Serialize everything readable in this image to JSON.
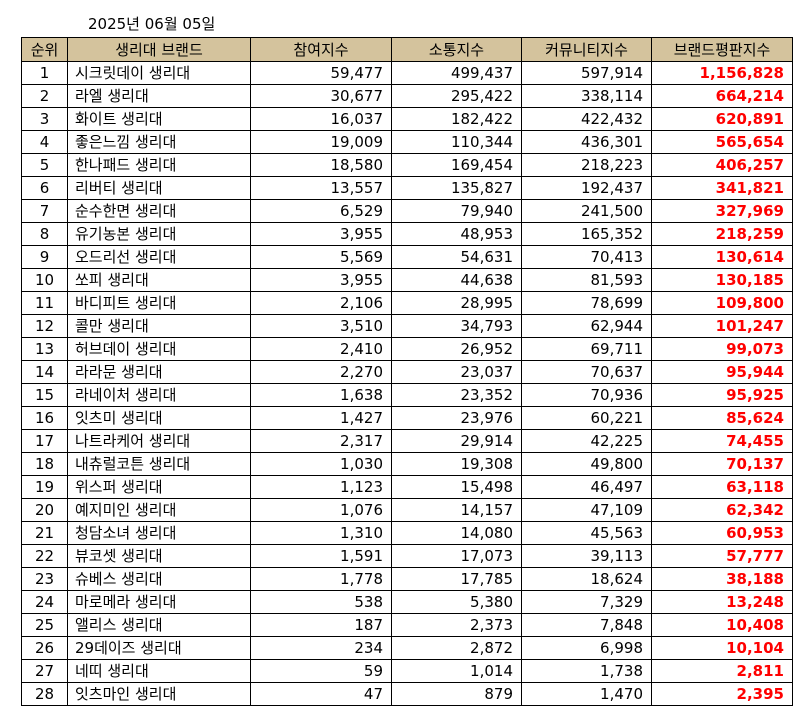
{
  "date": "2025년 06월 05일",
  "colors": {
    "header_bg": "#d4c39d",
    "score_text": "#ff0000"
  },
  "columns": [
    "순위",
    "생리대 브랜드",
    "참여지수",
    "소통지수",
    "커뮤니티지수",
    "브랜드평판지수"
  ],
  "rows": [
    {
      "rank": "1",
      "brand": "시크릿데이 생리대",
      "participation": "59,477",
      "communication": "499,437",
      "community": "597,914",
      "score": "1,156,828"
    },
    {
      "rank": "2",
      "brand": "라엘 생리대",
      "participation": "30,677",
      "communication": "295,422",
      "community": "338,114",
      "score": "664,214"
    },
    {
      "rank": "3",
      "brand": "화이트 생리대",
      "participation": "16,037",
      "communication": "182,422",
      "community": "422,432",
      "score": "620,891"
    },
    {
      "rank": "4",
      "brand": "좋은느낌 생리대",
      "participation": "19,009",
      "communication": "110,344",
      "community": "436,301",
      "score": "565,654"
    },
    {
      "rank": "5",
      "brand": "한나패드 생리대",
      "participation": "18,580",
      "communication": "169,454",
      "community": "218,223",
      "score": "406,257"
    },
    {
      "rank": "6",
      "brand": "리버티 생리대",
      "participation": "13,557",
      "communication": "135,827",
      "community": "192,437",
      "score": "341,821"
    },
    {
      "rank": "7",
      "brand": "순수한면 생리대",
      "participation": "6,529",
      "communication": "79,940",
      "community": "241,500",
      "score": "327,969"
    },
    {
      "rank": "8",
      "brand": "유기농본 생리대",
      "participation": "3,955",
      "communication": "48,953",
      "community": "165,352",
      "score": "218,259"
    },
    {
      "rank": "9",
      "brand": "오드리선 생리대",
      "participation": "5,569",
      "communication": "54,631",
      "community": "70,413",
      "score": "130,614"
    },
    {
      "rank": "10",
      "brand": "쏘피 생리대",
      "participation": "3,955",
      "communication": "44,638",
      "community": "81,593",
      "score": "130,185"
    },
    {
      "rank": "11",
      "brand": "바디피트 생리대",
      "participation": "2,106",
      "communication": "28,995",
      "community": "78,699",
      "score": "109,800"
    },
    {
      "rank": "12",
      "brand": "콜만 생리대",
      "participation": "3,510",
      "communication": "34,793",
      "community": "62,944",
      "score": "101,247"
    },
    {
      "rank": "13",
      "brand": "허브데이 생리대",
      "participation": "2,410",
      "communication": "26,952",
      "community": "69,711",
      "score": "99,073"
    },
    {
      "rank": "14",
      "brand": "라라문 생리대",
      "participation": "2,270",
      "communication": "23,037",
      "community": "70,637",
      "score": "95,944"
    },
    {
      "rank": "15",
      "brand": "라네이처 생리대",
      "participation": "1,638",
      "communication": "23,352",
      "community": "70,936",
      "score": "95,925"
    },
    {
      "rank": "16",
      "brand": "잇츠미 생리대",
      "participation": "1,427",
      "communication": "23,976",
      "community": "60,221",
      "score": "85,624"
    },
    {
      "rank": "17",
      "brand": "나트라케어 생리대",
      "participation": "2,317",
      "communication": "29,914",
      "community": "42,225",
      "score": "74,455"
    },
    {
      "rank": "18",
      "brand": "내츄럴코튼 생리대",
      "participation": "1,030",
      "communication": "19,308",
      "community": "49,800",
      "score": "70,137"
    },
    {
      "rank": "19",
      "brand": "위스퍼 생리대",
      "participation": "1,123",
      "communication": "15,498",
      "community": "46,497",
      "score": "63,118"
    },
    {
      "rank": "20",
      "brand": "예지미인 생리대",
      "participation": "1,076",
      "communication": "14,157",
      "community": "47,109",
      "score": "62,342"
    },
    {
      "rank": "21",
      "brand": "청담소녀 생리대",
      "participation": "1,310",
      "communication": "14,080",
      "community": "45,563",
      "score": "60,953"
    },
    {
      "rank": "22",
      "brand": "뷰코셋 생리대",
      "participation": "1,591",
      "communication": "17,073",
      "community": "39,113",
      "score": "57,777"
    },
    {
      "rank": "23",
      "brand": "슈베스 생리대",
      "participation": "1,778",
      "communication": "17,785",
      "community": "18,624",
      "score": "38,188"
    },
    {
      "rank": "24",
      "brand": "마로메라 생리대",
      "participation": "538",
      "communication": "5,380",
      "community": "7,329",
      "score": "13,248"
    },
    {
      "rank": "25",
      "brand": "앨리스 생리대",
      "participation": "187",
      "communication": "2,373",
      "community": "7,848",
      "score": "10,408"
    },
    {
      "rank": "26",
      "brand": "29데이즈 생리대",
      "participation": "234",
      "communication": "2,872",
      "community": "6,998",
      "score": "10,104"
    },
    {
      "rank": "27",
      "brand": "네띠 생리대",
      "participation": "59",
      "communication": "1,014",
      "community": "1,738",
      "score": "2,811"
    },
    {
      "rank": "28",
      "brand": "잇츠마인 생리대",
      "participation": "47",
      "communication": "879",
      "community": "1,470",
      "score": "2,395"
    }
  ]
}
